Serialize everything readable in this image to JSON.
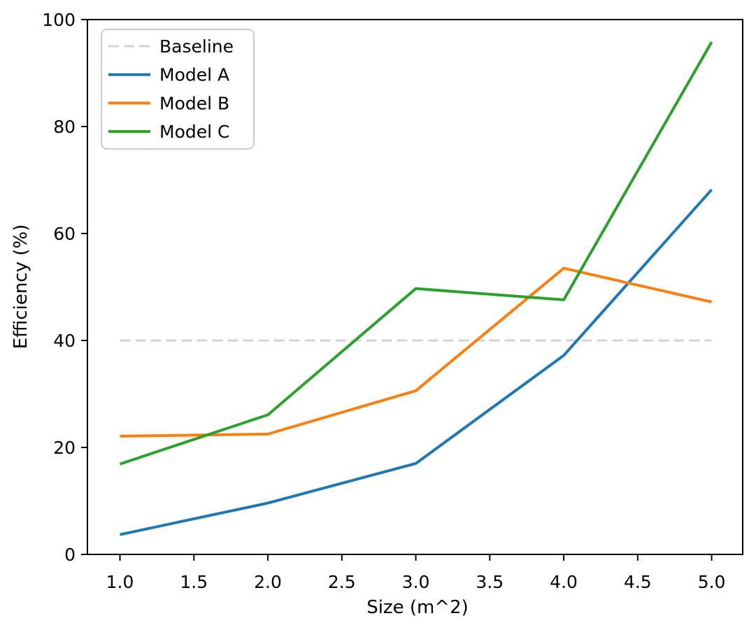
{
  "chart_data": {
    "type": "line",
    "title": "",
    "xlabel": "Size (m^2)",
    "ylabel": "Efficiency (%)",
    "x": [
      1.0,
      2.0,
      3.0,
      4.0,
      5.0
    ],
    "series": [
      {
        "name": "Baseline",
        "values": [
          40,
          40,
          40,
          40,
          40
        ],
        "color": "#d3d3d3",
        "dashed": true,
        "linewidth": 3
      },
      {
        "name": "Model A",
        "values": [
          3.7,
          9.6,
          17.0,
          37.2,
          68.2
        ],
        "color": "#1f77b4",
        "dashed": false,
        "linewidth": 4
      },
      {
        "name": "Model B",
        "values": [
          22.1,
          22.5,
          30.6,
          53.5,
          47.2
        ],
        "color": "#ff7f0e",
        "dashed": false,
        "linewidth": 4
      },
      {
        "name": "Model C",
        "values": [
          16.9,
          26.1,
          49.7,
          47.6,
          95.8
        ],
        "color": "#2ca02c",
        "dashed": false,
        "linewidth": 4
      }
    ],
    "xlim": [
      0.78,
      5.21
    ],
    "ylim": [
      0,
      100
    ],
    "xticks": [
      1.0,
      1.5,
      2.0,
      2.5,
      3.0,
      3.5,
      4.0,
      4.5,
      5.0
    ],
    "xtick_labels": [
      "1.0",
      "1.5",
      "2.0",
      "2.5",
      "3.0",
      "3.5",
      "4.0",
      "4.5",
      "5.0"
    ],
    "yticks": [
      0,
      20,
      40,
      60,
      80,
      100
    ],
    "ytick_labels": [
      "0",
      "20",
      "40",
      "60",
      "80",
      "100"
    ],
    "grid": false,
    "legend_position": "upper left",
    "legend_entries": [
      "Baseline",
      "Model A",
      "Model B",
      "Model C"
    ],
    "colors": {
      "background": "#ffffff",
      "frame": "#000000",
      "legend_border": "#cccccc",
      "baseline_gray": "#d3d3d3"
    }
  }
}
